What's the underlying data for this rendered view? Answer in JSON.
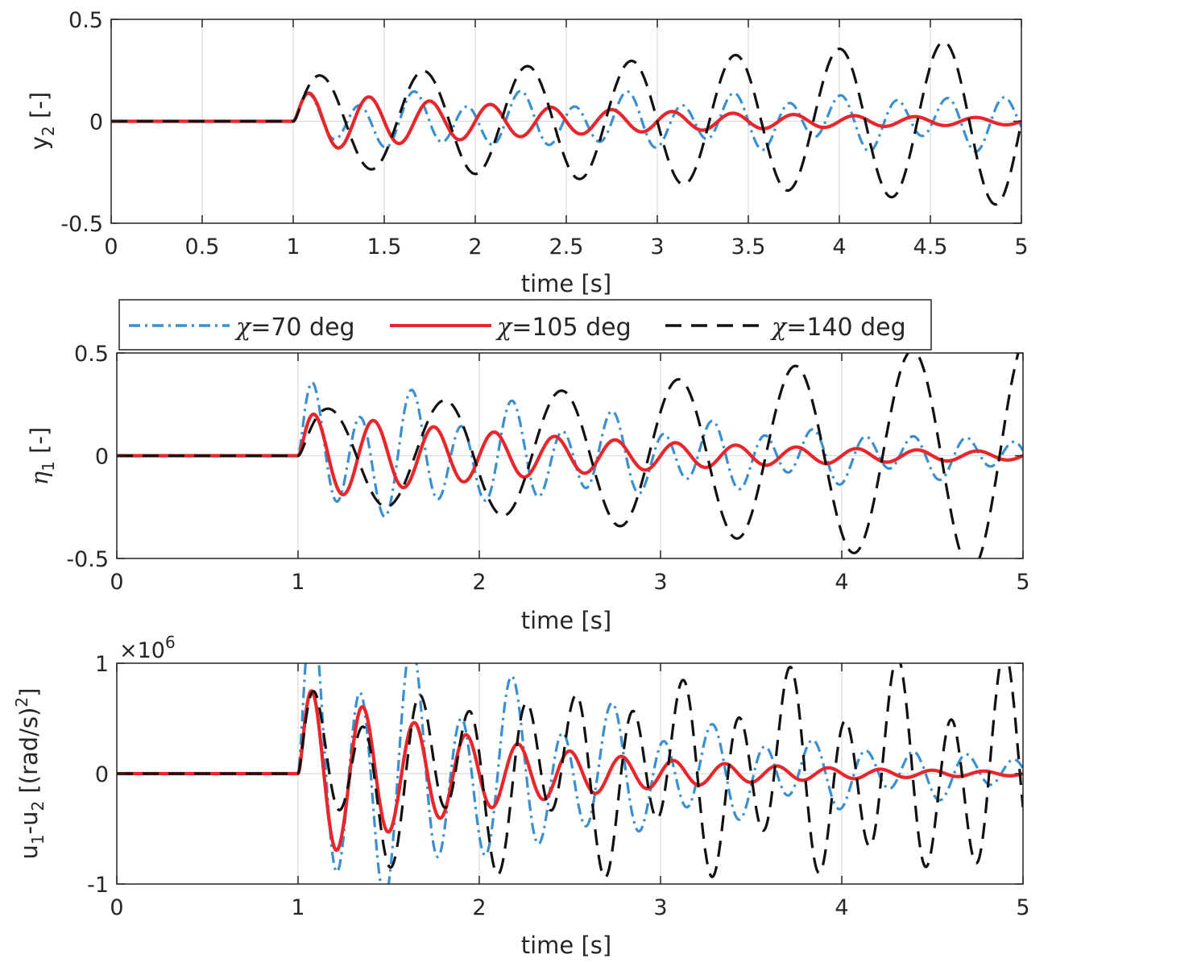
{
  "chart_data": [
    {
      "type": "line",
      "id": "y2",
      "title": "",
      "xlabel": "time [s]",
      "ylabel_main": "y",
      "ylabel_sub": "2",
      "ylabel_rest": " [-]",
      "xlim": [
        0,
        5
      ],
      "ylim": [
        -0.5,
        0.5
      ],
      "xticks": [
        0,
        0.5,
        1,
        1.5,
        2,
        2.5,
        3,
        3.5,
        4,
        4.5,
        5
      ],
      "xtick_labels": [
        "0",
        "0.5",
        "1",
        "1.5",
        "2",
        "2.5",
        "3",
        "3.5",
        "4",
        "4.5",
        "5"
      ],
      "yticks": [
        -0.5,
        0,
        0.5
      ],
      "ytick_labels": [
        "-0.5",
        "0",
        "0.5"
      ],
      "grid": true,
      "exponent_label": "",
      "series": [
        {
          "name": "χ=70 deg",
          "t0": 1.0,
          "amp": 0.11,
          "freq": 3.4,
          "decay": 0.0,
          "phase": 0.0
        },
        {
          "name": "χ=105 deg",
          "t0": 1.0,
          "amp": 0.15,
          "freq": 3.0,
          "decay": 0.55,
          "phase": 0.0
        },
        {
          "name": "χ=140 deg",
          "t0": 1.0,
          "amp": 0.22,
          "freq": 1.75,
          "decay": -0.16,
          "phase": 0.0
        }
      ]
    },
    {
      "type": "line",
      "id": "eta1",
      "title": "",
      "xlabel": "time [s]",
      "ylabel_main": "η",
      "ylabel_sub": "1",
      "ylabel_rest": " [-]",
      "xlim": [
        0,
        5
      ],
      "ylim": [
        -0.5,
        0.5
      ],
      "xticks": [
        0,
        1,
        2,
        3,
        4,
        5
      ],
      "xtick_labels": [
        "0",
        "1",
        "2",
        "3",
        "4",
        "5"
      ],
      "yticks": [
        -0.5,
        0,
        0.5
      ],
      "ytick_labels": [
        "-0.5",
        "0",
        "0.5"
      ],
      "grid": true,
      "exponent_label": "",
      "series": [
        {
          "name": "χ=70 deg",
          "t0": 1.0,
          "amp": 0.3,
          "freq": 3.6,
          "decay": 0.35,
          "phase": 0.0
        },
        {
          "name": "χ=105 deg",
          "t0": 1.0,
          "amp": 0.22,
          "freq": 3.0,
          "decay": 0.6,
          "phase": 0.0
        },
        {
          "name": "χ=140 deg",
          "t0": 1.0,
          "amp": 0.22,
          "freq": 1.55,
          "decay": -0.25,
          "phase": 0.0
        }
      ]
    },
    {
      "type": "line",
      "id": "u1u2",
      "title": "",
      "xlabel": "time [s]",
      "ylabel_main": "u",
      "ylabel_sub": "1",
      "ylabel_rest": "-u",
      "ylabel_sub2": "2",
      "ylabel_unit": " [(rad/s)",
      "ylabel_sup": "2",
      "ylabel_close": "]",
      "xlim": [
        0,
        5
      ],
      "ylim": [
        -1,
        1
      ],
      "xticks": [
        0,
        1,
        2,
        3,
        4,
        5
      ],
      "xtick_labels": [
        "0",
        "1",
        "2",
        "3",
        "4",
        "5"
      ],
      "yticks": [
        -1,
        0,
        1
      ],
      "ytick_labels": [
        "-1",
        "0",
        "1"
      ],
      "grid": true,
      "exponent_base": "×10",
      "exponent_power": "6",
      "series": [
        {
          "name": "χ=70 deg",
          "t0": 1.0,
          "amp": 1.25,
          "freq": 3.6,
          "decay": 0.55,
          "phase": 0.0
        },
        {
          "name": "χ=105 deg",
          "t0": 1.0,
          "amp": 0.85,
          "freq": 3.5,
          "decay": 0.95,
          "phase": 0.0
        },
        {
          "name": "χ=140 deg",
          "t0": 1.0,
          "amp": 0.55,
          "freq": 3.4,
          "decay": -0.1,
          "phase": 0.0
        }
      ]
    }
  ],
  "legend": {
    "entries": [
      {
        "symbol": "χ",
        "text": "=70 deg",
        "color": "#3a8fd0",
        "style": "dashdot"
      },
      {
        "symbol": "χ",
        "text": "=105 deg",
        "color": "#e8262b",
        "style": "solid"
      },
      {
        "symbol": "χ",
        "text": "=140 deg",
        "color": "#111111",
        "style": "dashed"
      }
    ]
  },
  "colors": {
    "chi70": "#3a8fd0",
    "chi105": "#e8262b",
    "chi140": "#111111",
    "chi140_mid": "#404040",
    "axes": "#262626",
    "grid": "#dcdcdc"
  }
}
